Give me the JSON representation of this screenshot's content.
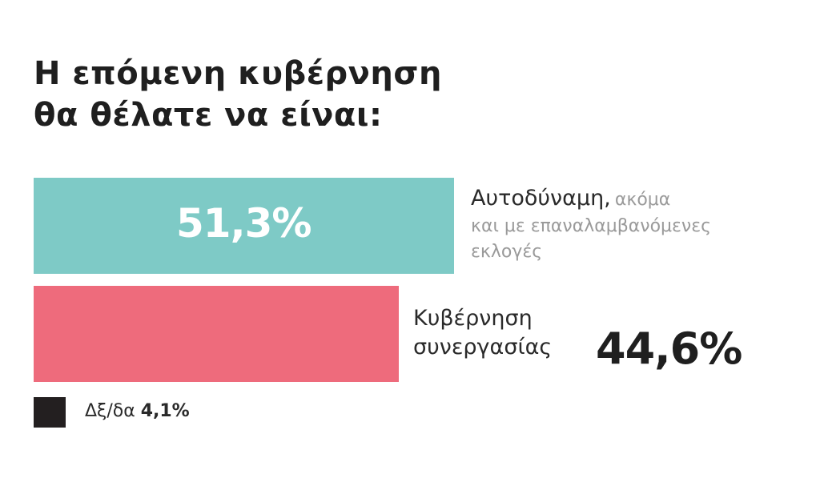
{
  "title_lines": [
    "Η επόμενη κυβέρνηση",
    "θα θέλατε να είναι:"
  ],
  "colors": {
    "bar1": "#7ecac6",
    "bar2": "#ee6b7c",
    "legend_swatch": "#231f20"
  },
  "chart_data": {
    "type": "bar",
    "orientation": "horizontal",
    "title": "Η επόμενη κυβέρνηση θα θέλατε να είναι:",
    "categories": [
      "Αυτοδύναμη, ακόμα και με επαναλαμβανόμενες εκλογές",
      "Κυβέρνηση συνεργασίας",
      "Δξ/δα"
    ],
    "values": [
      51.3,
      44.6,
      4.1
    ],
    "value_labels": [
      "51,3%",
      "44,6%",
      "4,1%"
    ],
    "unit": "%",
    "xlim": [
      0,
      100
    ]
  },
  "labels": {
    "bar1_main": "Αυτοδύναμη,",
    "bar1_sub_inline": "ακόμα",
    "bar1_sub_line2": "και με επαναλαμβανόμενες",
    "bar1_sub_line3": "εκλογές",
    "bar2_line1": "Κυβέρνηση",
    "bar2_line2": "συνεργασίας",
    "legend_label": "Δξ/δα"
  }
}
